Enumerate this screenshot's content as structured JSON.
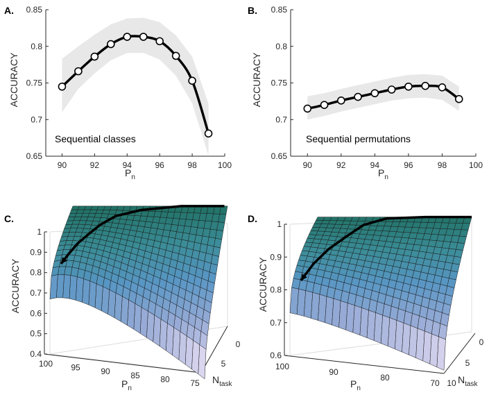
{
  "chart_data": [
    {
      "panel": "A.",
      "type": "line",
      "annotation": "Sequential classes",
      "xlabel": "P",
      "xlabel_sub": "n",
      "ylabel": "ACCURACY",
      "xlim": [
        89,
        100
      ],
      "ylim": [
        0.65,
        0.85
      ],
      "xticks": [
        "90",
        "92",
        "94",
        "96",
        "98",
        "100"
      ],
      "yticks": [
        "0.65",
        "0.7",
        "0.75",
        "0.8",
        "0.85"
      ],
      "series": [
        {
          "name": "accuracy",
          "x": [
            90,
            91,
            92,
            93,
            94,
            95,
            96,
            97,
            98,
            99
          ],
          "values": [
            0.745,
            0.766,
            0.786,
            0.803,
            0.813,
            0.813,
            0.807,
            0.787,
            0.753,
            0.681
          ]
        }
      ],
      "band": {
        "x": [
          90,
          91,
          92,
          93,
          94,
          95,
          96,
          97,
          98,
          99
        ],
        "lower": [
          0.71,
          0.742,
          0.763,
          0.781,
          0.791,
          0.791,
          0.782,
          0.76,
          0.722,
          0.651
        ],
        "upper": [
          0.783,
          0.8,
          0.816,
          0.83,
          0.838,
          0.839,
          0.833,
          0.815,
          0.786,
          0.722
        ]
      }
    },
    {
      "panel": "B.",
      "type": "line",
      "annotation": "Sequential permutations",
      "xlabel": "P",
      "xlabel_sub": "n",
      "ylabel": "ACCURACY",
      "xlim": [
        89,
        100
      ],
      "ylim": [
        0.65,
        0.85
      ],
      "xticks": [
        "90",
        "92",
        "94",
        "96",
        "98",
        "100"
      ],
      "yticks": [
        "0.65",
        "0.7",
        "0.75",
        "0.8",
        "0.85"
      ],
      "series": [
        {
          "name": "accuracy",
          "x": [
            90,
            91,
            92,
            93,
            94,
            95,
            96,
            97,
            98,
            99
          ],
          "values": [
            0.715,
            0.72,
            0.726,
            0.731,
            0.736,
            0.741,
            0.745,
            0.746,
            0.744,
            0.728
          ]
        }
      ],
      "band": {
        "x": [
          90,
          91,
          92,
          93,
          94,
          95,
          96,
          97,
          98,
          99
        ],
        "lower": [
          0.7,
          0.705,
          0.711,
          0.716,
          0.721,
          0.726,
          0.729,
          0.73,
          0.727,
          0.712
        ],
        "upper": [
          0.732,
          0.736,
          0.742,
          0.747,
          0.752,
          0.757,
          0.761,
          0.762,
          0.76,
          0.745
        ]
      }
    },
    {
      "panel": "C.",
      "type": "surface",
      "xlabel": "P",
      "xlabel_sub": "n",
      "ylabel": "N",
      "ylabel_sub": "task",
      "zlabel": "ACCURACY",
      "xlim": [
        75,
        100
      ],
      "ylim": [
        0,
        8
      ],
      "zlim": [
        0.4,
        1
      ],
      "xticks": [
        "100",
        "95",
        "90",
        "85",
        "80",
        "75"
      ],
      "yticks": [
        "0",
        "5"
      ],
      "zticks": [
        "0.4",
        "0.5",
        "0.6",
        "0.7",
        "0.8",
        "0.9",
        "1"
      ]
    },
    {
      "panel": "D.",
      "type": "surface",
      "xlabel": "P",
      "xlabel_sub": "n",
      "ylabel": "N",
      "ylabel_sub": "task",
      "zlabel": "ACCURACY",
      "xlim": [
        70,
        100
      ],
      "ylim": [
        0,
        10
      ],
      "zlim": [
        0.6,
        1
      ],
      "xticks": [
        "100",
        "90",
        "80",
        "70"
      ],
      "yticks": [
        "10",
        "5",
        "0"
      ],
      "zticks": [
        "0.6",
        "0.7",
        "0.8",
        "0.9",
        "1"
      ]
    }
  ]
}
